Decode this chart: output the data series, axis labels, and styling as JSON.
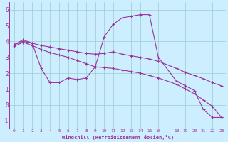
{
  "bg_color": "#cceeff",
  "line_color": "#993399",
  "grid_color": "#99cccc",
  "xlabel": "Windchill (Refroidissement éolien,°C)",
  "tick_color": "#993399",
  "ylim": [
    -1.5,
    6.5
  ],
  "xlim": [
    -0.5,
    23.5
  ],
  "yticks": [
    -1,
    0,
    1,
    2,
    3,
    4,
    5,
    6
  ],
  "xticks": [
    0,
    1,
    2,
    3,
    4,
    5,
    6,
    7,
    8,
    9,
    10,
    11,
    12,
    13,
    14,
    15,
    16,
    18,
    19,
    20,
    21,
    22,
    23
  ],
  "xtick_labels": [
    "0",
    "1",
    "2",
    "3",
    "4",
    "5",
    "6",
    "7",
    "8",
    "9",
    "10",
    "11",
    "12",
    "13",
    "14",
    "15",
    "16",
    "18",
    "19",
    "20",
    "21",
    "22",
    "23"
  ],
  "series1_x": [
    0,
    1,
    2,
    3,
    4,
    5,
    6,
    7,
    8,
    9,
    10,
    11,
    12,
    13,
    14,
    15,
    16,
    18,
    19,
    20,
    21,
    22,
    23
  ],
  "series1_y": [
    3.8,
    4.1,
    3.9,
    2.3,
    1.4,
    1.4,
    1.7,
    1.6,
    1.7,
    2.4,
    4.3,
    5.1,
    5.5,
    5.6,
    5.7,
    5.7,
    3.0,
    1.5,
    1.2,
    0.9,
    -0.3,
    -0.8,
    -0.8
  ],
  "series2_x": [
    0,
    1,
    2,
    3,
    4,
    5,
    6,
    7,
    8,
    9,
    10,
    11,
    12,
    13,
    14,
    15,
    16,
    18,
    19,
    20,
    21,
    22,
    23
  ],
  "series2_y": [
    3.8,
    4.0,
    3.9,
    3.75,
    3.65,
    3.55,
    3.45,
    3.35,
    3.25,
    3.2,
    3.25,
    3.35,
    3.2,
    3.1,
    3.0,
    2.9,
    2.75,
    2.3,
    2.05,
    1.85,
    1.65,
    1.4,
    1.2
  ],
  "series3_x": [
    0,
    1,
    2,
    3,
    4,
    5,
    6,
    7,
    8,
    9,
    10,
    11,
    12,
    13,
    14,
    15,
    16,
    18,
    19,
    20,
    21,
    22,
    23
  ],
  "series3_y": [
    3.7,
    3.95,
    3.75,
    3.5,
    3.3,
    3.15,
    3.0,
    2.8,
    2.6,
    2.4,
    2.35,
    2.3,
    2.2,
    2.1,
    2.0,
    1.85,
    1.7,
    1.3,
    1.0,
    0.7,
    0.3,
    -0.1,
    -0.8
  ],
  "marker": "+"
}
